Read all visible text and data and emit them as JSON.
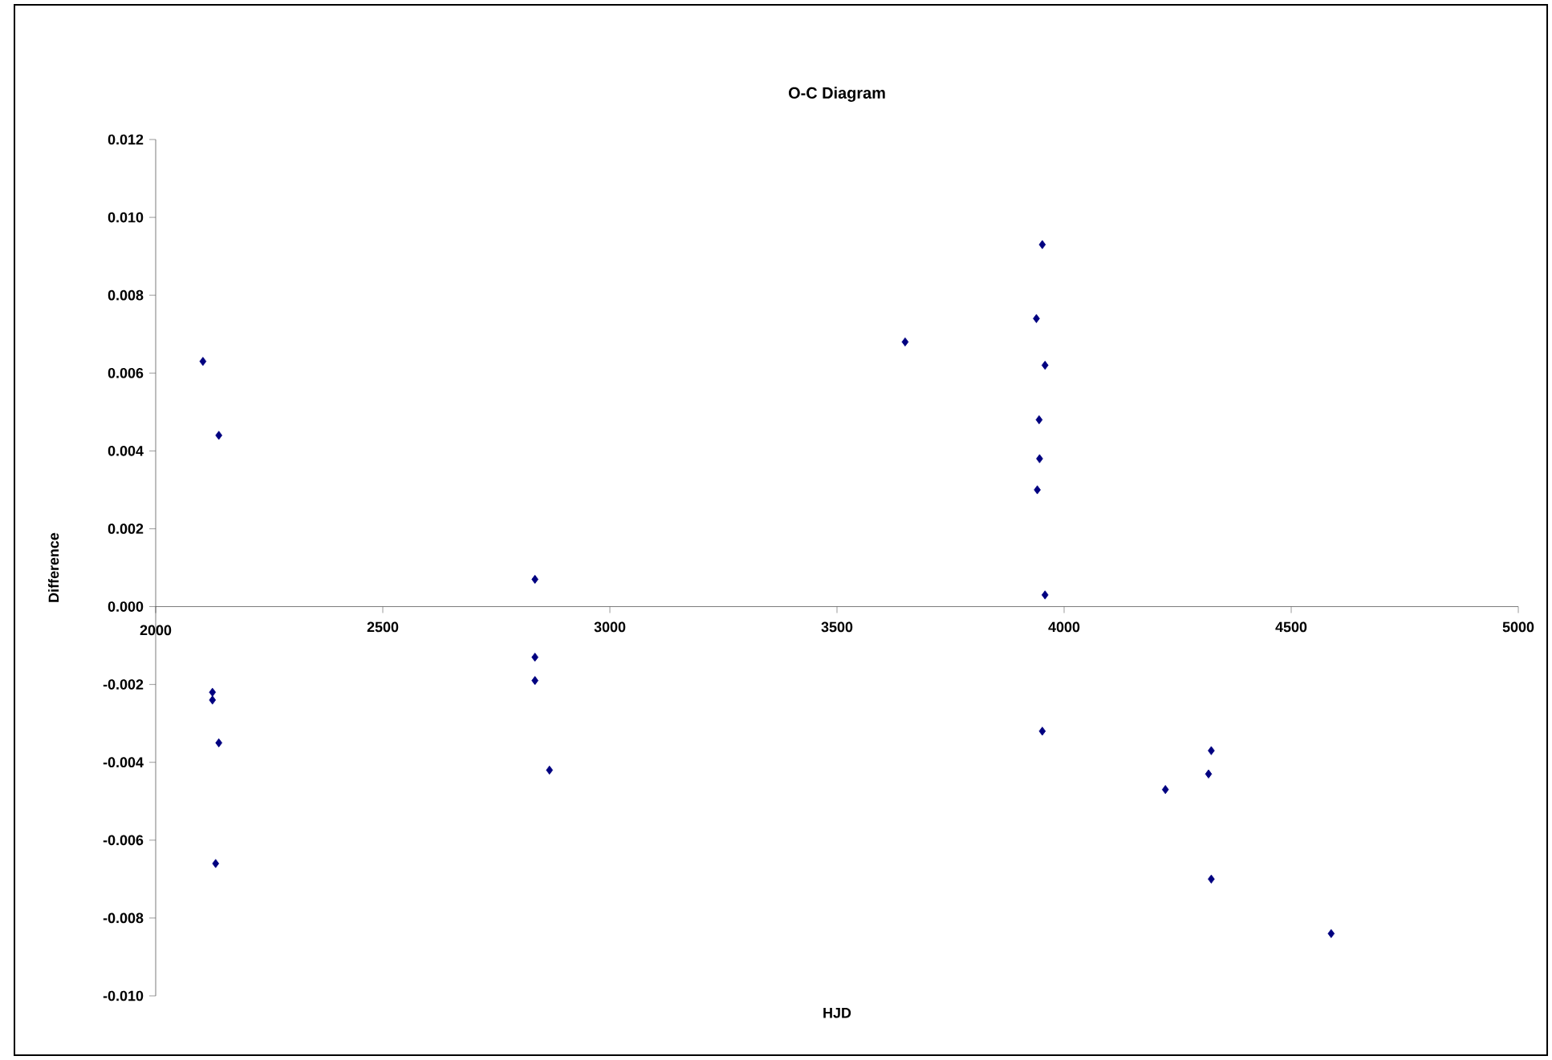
{
  "chart_data": {
    "type": "scatter",
    "title": "O-C Diagram",
    "xlabel": "HJD",
    "ylabel": "Difference",
    "x": [
      2104,
      2139,
      2125,
      2125,
      2139,
      2132,
      2835,
      2835,
      2835,
      2867,
      3650,
      3952,
      3939,
      3958,
      3945,
      3946,
      3941,
      3958,
      3952,
      4324,
      4318,
      4223,
      4324,
      4588
    ],
    "values": [
      0.0063,
      0.0044,
      -0.0022,
      -0.0024,
      -0.0035,
      -0.0066,
      0.0007,
      -0.0013,
      -0.0019,
      -0.0042,
      0.0068,
      0.0093,
      0.0074,
      0.0062,
      0.0048,
      0.0038,
      0.003,
      0.0003,
      -0.0032,
      -0.0037,
      -0.0043,
      -0.0047,
      -0.007,
      -0.0084
    ],
    "color": "#000080",
    "marker": "diamond",
    "grid": false,
    "xlim": [
      2000,
      5000
    ],
    "xticks": [
      2000,
      2500,
      3000,
      3500,
      4000,
      4500,
      5000
    ],
    "ylim": [
      -0.01,
      0.012
    ],
    "yticks": [
      {
        "value": -0.01,
        "label": "-0.010"
      },
      {
        "value": -0.008,
        "label": "-0.008"
      },
      {
        "value": -0.006,
        "label": "-0.006"
      },
      {
        "value": -0.004,
        "label": "-0.004"
      },
      {
        "value": -0.002,
        "label": "-0.002"
      },
      {
        "value": 0,
        "label": "0.000"
      },
      {
        "value": 0.002,
        "label": "0.002"
      },
      {
        "value": 0.004,
        "label": "0.004"
      },
      {
        "value": 0.006,
        "label": "0.006"
      },
      {
        "value": 0.008,
        "label": "0.008"
      },
      {
        "value": 0.01,
        "label": "0.010"
      },
      {
        "value": 0.012,
        "label": "0.012"
      }
    ]
  }
}
